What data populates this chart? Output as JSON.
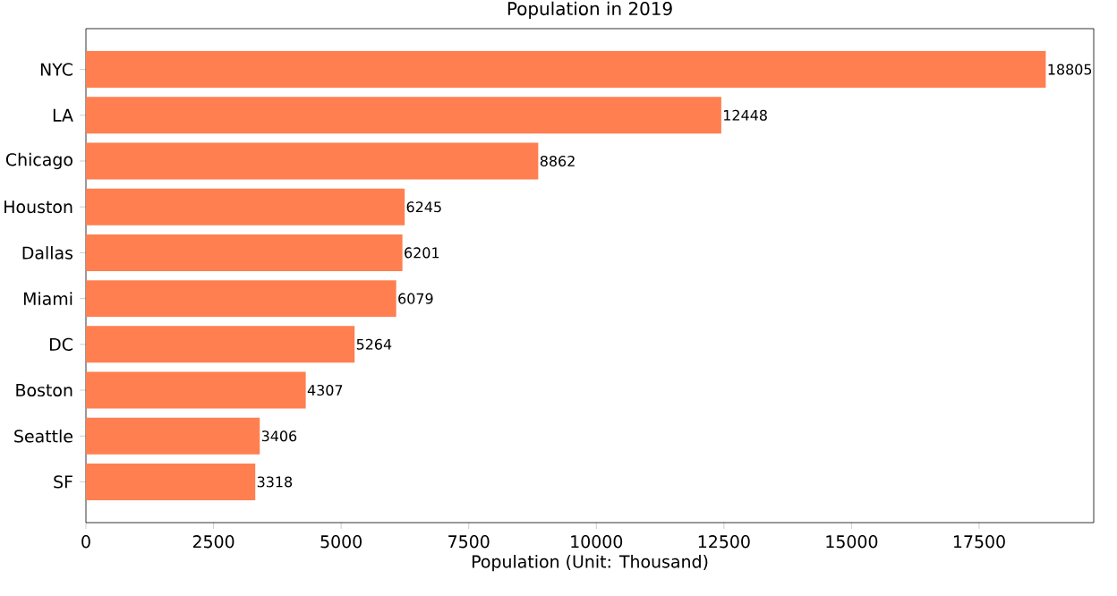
{
  "chart_data": {
    "type": "bar",
    "orientation": "horizontal",
    "title": "Population in 2019",
    "xlabel": "Population (Unit: Thousand)",
    "categories": [
      "NYC",
      "LA",
      "Chicago",
      "Houston",
      "Dallas",
      "Miami",
      "DC",
      "Boston",
      "Seattle",
      "SF"
    ],
    "values": [
      18805,
      12448,
      8862,
      6245,
      6201,
      6079,
      5264,
      4307,
      3406,
      3318
    ],
    "color": "#ff7f50",
    "data_labels": true,
    "grid": false,
    "xlim": [
      0,
      19745
    ],
    "xticks": [
      0,
      2500,
      5000,
      7500,
      10000,
      12500,
      15000,
      17500
    ]
  }
}
